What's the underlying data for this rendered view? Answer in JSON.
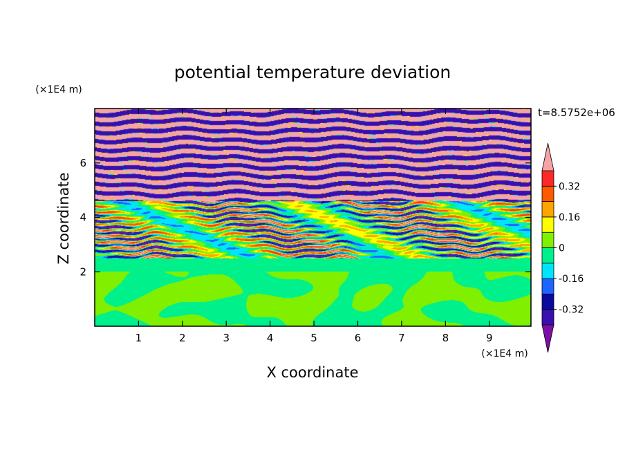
{
  "chart_data": {
    "type": "heatmap",
    "title": "potential temperature deviation",
    "xlabel": "X coordinate",
    "ylabel": "Z coordinate",
    "x_unit": "(×1E4 m)",
    "y_unit": "(×1E4 m)",
    "time_label": "t=8.5752e+06",
    "xlim": [
      0,
      9.95
    ],
    "ylim": [
      0,
      8.0
    ],
    "x_ticks": [
      "1",
      "2",
      "3",
      "4",
      "5",
      "6",
      "7",
      "8",
      "9"
    ],
    "y_ticks": [
      "2",
      "4",
      "6"
    ],
    "x_tick_values": [
      1,
      2,
      3,
      4,
      5,
      6,
      7,
      8,
      9
    ],
    "y_tick_values": [
      2,
      4,
      6
    ],
    "colorbar": {
      "labels": [
        "0.32",
        "0.16",
        "0",
        "-0.16",
        "-0.32"
      ],
      "label_values": [
        0.32,
        0.16,
        0,
        -0.16,
        -0.32
      ],
      "levels": [
        -0.4,
        -0.32,
        -0.24,
        -0.16,
        -0.08,
        0,
        0.08,
        0.16,
        0.24,
        0.32,
        0.4
      ],
      "colors": [
        "#7b0fa8",
        "#3a0fb0",
        "#0a0aa0",
        "#1e64ff",
        "#00e5ff",
        "#00f08c",
        "#80f000",
        "#ffff00",
        "#ffa500",
        "#ff5a00",
        "#ff2828",
        "#f4a4a4"
      ],
      "extend": "both"
    },
    "regions": [
      {
        "z_range": [
          0,
          2.0
        ],
        "pattern": "mixed",
        "values": [
          -0.04,
          0.04
        ]
      },
      {
        "z_range": [
          2.0,
          2.5
        ],
        "pattern": "uniform",
        "values": [
          -0.04
        ]
      },
      {
        "z_range": [
          2.5,
          4.6
        ],
        "pattern": "layered",
        "values": [
          -0.4,
          0.4
        ]
      },
      {
        "z_range": [
          4.6,
          8.0
        ],
        "pattern": "banded",
        "values": [
          -0.4,
          0.4
        ]
      }
    ]
  }
}
